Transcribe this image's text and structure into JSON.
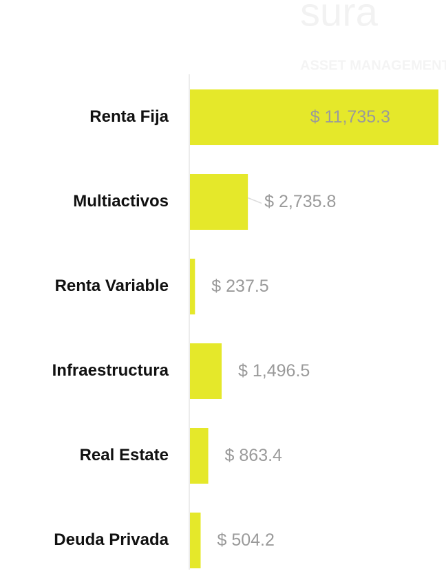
{
  "chart_data": {
    "type": "barh",
    "watermark": [
      "sura",
      "ASSET MANAGEMENT"
    ],
    "categories": [
      "Renta Fija",
      "Multiactivos",
      "Renta Variable",
      "Infraestructura",
      "Real Estate",
      "Deuda Privada"
    ],
    "values": [
      11735.3,
      2735.8,
      237.5,
      1496.5,
      863.4,
      504.2
    ],
    "value_labels": [
      "$ 11,735.3",
      "$ 2,735.8",
      "$ 237.5",
      "$ 1,496.5",
      "$ 863.4",
      "$ 504.2"
    ],
    "color": "#e5e82a"
  }
}
